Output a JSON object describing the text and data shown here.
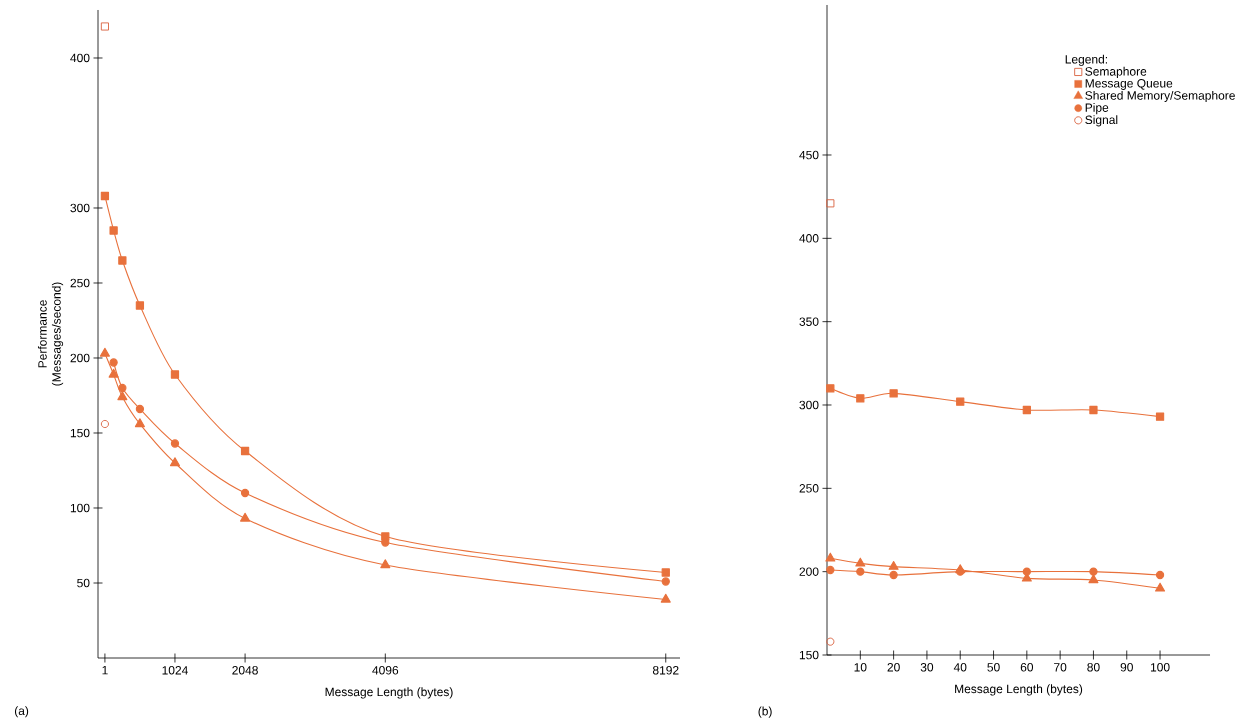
{
  "chart_data": [
    {
      "type": "line",
      "xlabel": "Message Length (bytes)",
      "ylabel": "Performance (Messages/second)",
      "annotations": [
        "(a)"
      ],
      "xlim": [
        -100,
        8400
      ],
      "xticks": [
        1,
        1024,
        2048,
        4096,
        8192
      ],
      "ylim": [
        0,
        432
      ],
      "yticks": [
        50,
        100,
        150,
        200,
        250,
        300,
        400
      ],
      "line_style": "solid",
      "series": [
        {
          "type": "scatter",
          "marker": "square",
          "color": "#d9603e",
          "x": [
            1
          ],
          "values": [
            421
          ]
        },
        {
          "marker": "square",
          "color": "#e8713c",
          "x": [
            1,
            128,
            256,
            512,
            1024,
            2048,
            4096,
            8192
          ],
          "values": [
            308,
            285,
            265,
            235,
            189,
            138,
            81,
            57
          ]
        },
        {
          "marker": "triangle",
          "color": "#e8713c",
          "x": [
            1,
            128,
            256,
            512,
            1024,
            2048,
            4096,
            8192
          ],
          "values": [
            203,
            189,
            174,
            156,
            130,
            93,
            62,
            39
          ]
        },
        {
          "marker": "circle",
          "color": "#e8713c",
          "x": [
            128,
            256,
            512,
            1024,
            2048,
            4096,
            8192
          ],
          "values": [
            197,
            180,
            166,
            143,
            110,
            77,
            51
          ]
        },
        {
          "type": "scatter",
          "marker": "circle",
          "color": "#d9603e",
          "x": [
            1
          ],
          "values": [
            156
          ]
        }
      ]
    },
    {
      "type": "line",
      "xlabel": "Message Length (bytes)",
      "annotations": [
        "(b)"
      ],
      "legend": "top right",
      "legend_title": "Legend:",
      "xlim": [
        0,
        115
      ],
      "xticks": [
        10,
        20,
        30,
        40,
        50,
        60,
        70,
        80,
        90,
        100
      ],
      "ylim": [
        150,
        540
      ],
      "yticks": [
        150,
        200,
        250,
        300,
        350,
        400,
        450
      ],
      "line_style": "solid",
      "series": [
        {
          "name": "Semaphore",
          "type": "scatter",
          "marker": "square",
          "color": "#d9603e",
          "x": [
            1
          ],
          "values": [
            421
          ]
        },
        {
          "name": "Message Queue",
          "marker": "square",
          "color": "#e8713c",
          "x": [
            1,
            10,
            20,
            40,
            60,
            80,
            100
          ],
          "values": [
            310,
            304,
            307,
            302,
            297,
            297,
            293
          ]
        },
        {
          "name": "Shared Memory/Semaphore",
          "marker": "triangle",
          "color": "#e8713c",
          "x": [
            1,
            10,
            20,
            40,
            60,
            80,
            100
          ],
          "values": [
            208,
            205,
            203,
            201,
            196,
            195,
            190
          ]
        },
        {
          "name": "Pipe",
          "marker": "circle",
          "color": "#e8713c",
          "x": [
            1,
            10,
            20,
            40,
            60,
            80,
            100
          ],
          "values": [
            201,
            200,
            198,
            200,
            200,
            200,
            198
          ]
        },
        {
          "name": "Signal",
          "type": "scatter",
          "marker": "circle",
          "color": "#d9603e",
          "x": [
            1
          ],
          "values": [
            158
          ]
        }
      ]
    }
  ]
}
